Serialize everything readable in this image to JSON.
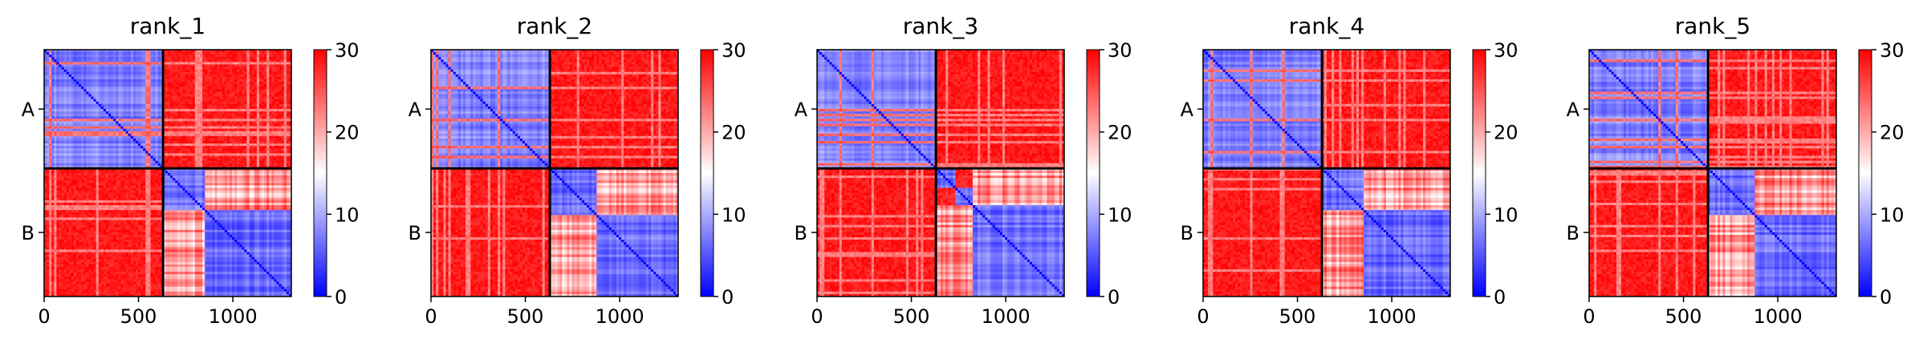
{
  "chart_data": {
    "type": "heatmap",
    "panels": [
      {
        "title": "rank_1",
        "block_split": 630,
        "variant": 1
      },
      {
        "title": "rank_2",
        "block_split": 630,
        "variant": 2
      },
      {
        "title": "rank_3",
        "block_split": 630,
        "variant": 3
      },
      {
        "title": "rank_4",
        "block_split": 630,
        "variant": 4
      },
      {
        "title": "rank_5",
        "block_split": 630,
        "variant": 5
      }
    ],
    "matrix_size": 1310,
    "x_ticks": [
      0,
      500,
      1000
    ],
    "y_tick_labels": [
      "A",
      "B"
    ],
    "y_tick_positions": [
      315,
      970
    ],
    "colorbar": {
      "min": 0,
      "max": 30,
      "ticks": [
        0,
        10,
        20,
        30
      ],
      "colors": [
        "#0000ff",
        "#ffffff",
        "#ff0000"
      ]
    },
    "cell_values": {
      "intra_chain_low": 5,
      "inter_chain_high": 30,
      "diagonal": 0
    }
  }
}
